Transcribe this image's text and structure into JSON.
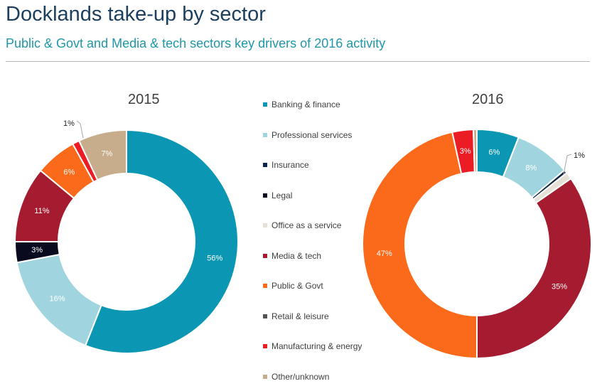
{
  "header": {
    "title": "Docklands take-up by sector",
    "subtitle": "Public & Govt and Media & tech sectors key drivers of 2016 activity"
  },
  "legend": [
    {
      "label": "Banking & finance",
      "color": "#0b97b3"
    },
    {
      "label": "Professional services",
      "color": "#a0d5df"
    },
    {
      "label": "Insurance",
      "color": "#0c2742"
    },
    {
      "label": "Legal",
      "color": "#0a0a1e"
    },
    {
      "label": "Office as a service",
      "color": "#e6e1d6"
    },
    {
      "label": "Media & tech",
      "color": "#a51c30"
    },
    {
      "label": "Public & Govt",
      "color": "#fb6a1b"
    },
    {
      "label": "Retail & leisure",
      "color": "#555555"
    },
    {
      "label": "Manufacturing & energy",
      "color": "#ec1c24"
    },
    {
      "label": "Other/unknown",
      "color": "#c8ad8c"
    }
  ],
  "chart_data": [
    {
      "type": "pie",
      "title": "2015",
      "slices": [
        {
          "label": "Banking & finance",
          "value": 56,
          "display": "56%",
          "color": "#0b97b3",
          "text_color": "#ffffff"
        },
        {
          "label": "Professional services",
          "value": 16,
          "display": "16%",
          "color": "#a0d5df",
          "text_color": "#ffffff"
        },
        {
          "label": "Insurance",
          "value": 0,
          "display": "",
          "color": "#0c2742",
          "text_color": "#ffffff"
        },
        {
          "label": "Legal",
          "value": 3,
          "display": "3%",
          "color": "#0a0a1e",
          "text_color": "#ffffff"
        },
        {
          "label": "Office as a service",
          "value": 0,
          "display": "",
          "color": "#e6e1d6",
          "text_color": "#404040"
        },
        {
          "label": "Media & tech",
          "value": 11,
          "display": "11%",
          "color": "#a51c30",
          "text_color": "#ffffff"
        },
        {
          "label": "Public & Govt",
          "value": 6,
          "display": "6%",
          "color": "#fb6a1b",
          "text_color": "#ffffff"
        },
        {
          "label": "Retail & leisure",
          "value": 0,
          "display": "",
          "color": "#555555",
          "text_color": "#ffffff"
        },
        {
          "label": "Manufacturing & energy",
          "value": 1,
          "display": "1%",
          "color": "#ec1c24",
          "text_color": "#222222",
          "callout": true
        },
        {
          "label": "Other/unknown",
          "value": 7,
          "display": "7%",
          "color": "#c8ad8c",
          "text_color": "#ffffff"
        }
      ]
    },
    {
      "type": "pie",
      "title": "2016",
      "slices": [
        {
          "label": "Banking & finance",
          "value": 6,
          "display": "6%",
          "color": "#0b97b3",
          "text_color": "#ffffff"
        },
        {
          "label": "Professional services",
          "value": 8,
          "display": "8%",
          "color": "#a0d5df",
          "text_color": "#ffffff"
        },
        {
          "label": "Insurance",
          "value": 0.5,
          "display": "",
          "color": "#0c2742",
          "text_color": "#ffffff"
        },
        {
          "label": "Legal",
          "value": 0,
          "display": "",
          "color": "#0a0a1e",
          "text_color": "#ffffff"
        },
        {
          "label": "Office as a service",
          "value": 1,
          "display": "1%",
          "color": "#e6e1d6",
          "text_color": "#222222",
          "callout": true
        },
        {
          "label": "Media & tech",
          "value": 35,
          "display": "35%",
          "color": "#a51c30",
          "text_color": "#ffffff"
        },
        {
          "label": "Public & Govt",
          "value": 47,
          "display": "47%",
          "color": "#fb6a1b",
          "text_color": "#ffffff"
        },
        {
          "label": "Retail & leisure",
          "value": 0,
          "display": "",
          "color": "#555555",
          "text_color": "#ffffff"
        },
        {
          "label": "Manufacturing & energy",
          "value": 3,
          "display": "3%",
          "color": "#ec1c24",
          "text_color": "#ffffff"
        },
        {
          "label": "Other/unknown",
          "value": 0.5,
          "display": "",
          "color": "#c8ad8c",
          "text_color": "#ffffff"
        }
      ]
    }
  ]
}
